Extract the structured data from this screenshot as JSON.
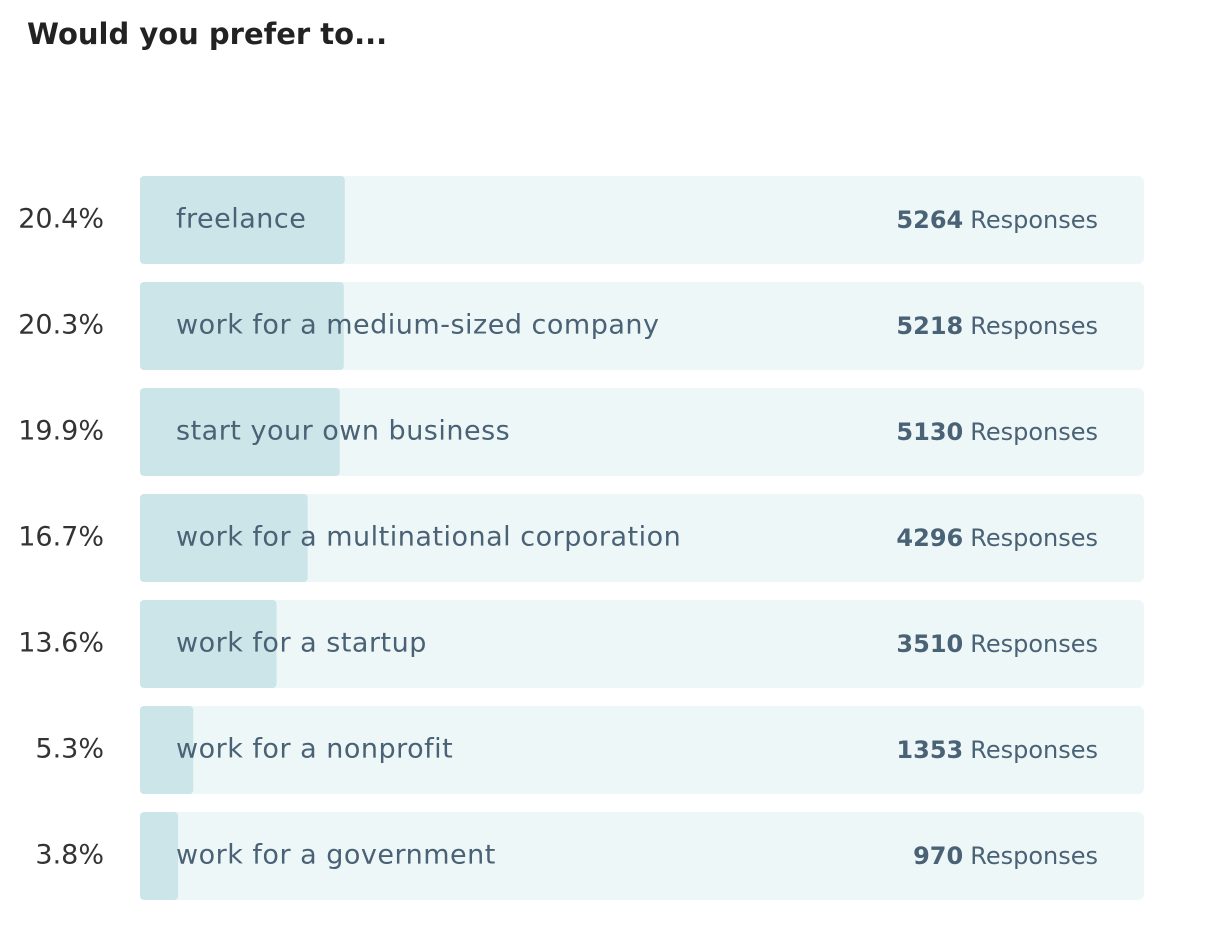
{
  "chart_data": {
    "type": "bar",
    "orientation": "horizontal",
    "title": "Would you prefer to...",
    "categories": [
      "freelance",
      "work for a medium-sized company",
      "start your own business",
      "work for a multinational corporation",
      "work for a startup",
      "work for a nonprofit",
      "work for a government"
    ],
    "values": [
      20.4,
      20.3,
      19.9,
      16.7,
      13.6,
      5.3,
      3.8
    ],
    "value_labels": [
      "20.4%",
      "20.3%",
      "19.9%",
      "16.7%",
      "13.6%",
      "5.3%",
      "3.8%"
    ],
    "responses": [
      5264,
      5218,
      5130,
      4296,
      3510,
      1353,
      970
    ],
    "responses_label": "Responses",
    "xlim": [
      0,
      100
    ],
    "color": "#cce5e9",
    "track_color": "#eef7f8"
  }
}
